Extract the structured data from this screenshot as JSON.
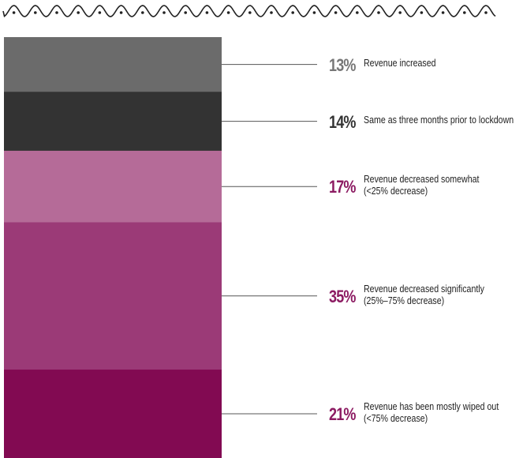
{
  "chart_data": {
    "type": "stacked-bar",
    "segments": [
      {
        "value": 13,
        "pct_label": "13%",
        "label_lines": [
          "Revenue increased"
        ],
        "color": "#6b6b6b",
        "pct_color": "#777777"
      },
      {
        "value": 14,
        "pct_label": "14%",
        "label_lines": [
          "Same as three months prior to lockdown"
        ],
        "color": "#333333",
        "pct_color": "#333333"
      },
      {
        "value": 17,
        "pct_label": "17%",
        "label_lines": [
          "Revenue decreased somewhat",
          "(<25% decrease)"
        ],
        "color": "#b56b98",
        "pct_color": "#8c1b62"
      },
      {
        "value": 35,
        "pct_label": "35%",
        "label_lines": [
          "Revenue decreased significantly",
          "(25%–75% decrease)"
        ],
        "color": "#9b3a77",
        "pct_color": "#8c1b62"
      },
      {
        "value": 21,
        "pct_label": "21%",
        "label_lines": [
          "Revenue has been mostly wiped out",
          "(<75% decrease)"
        ],
        "color": "#820a52",
        "pct_color": "#8c1b62"
      }
    ]
  }
}
